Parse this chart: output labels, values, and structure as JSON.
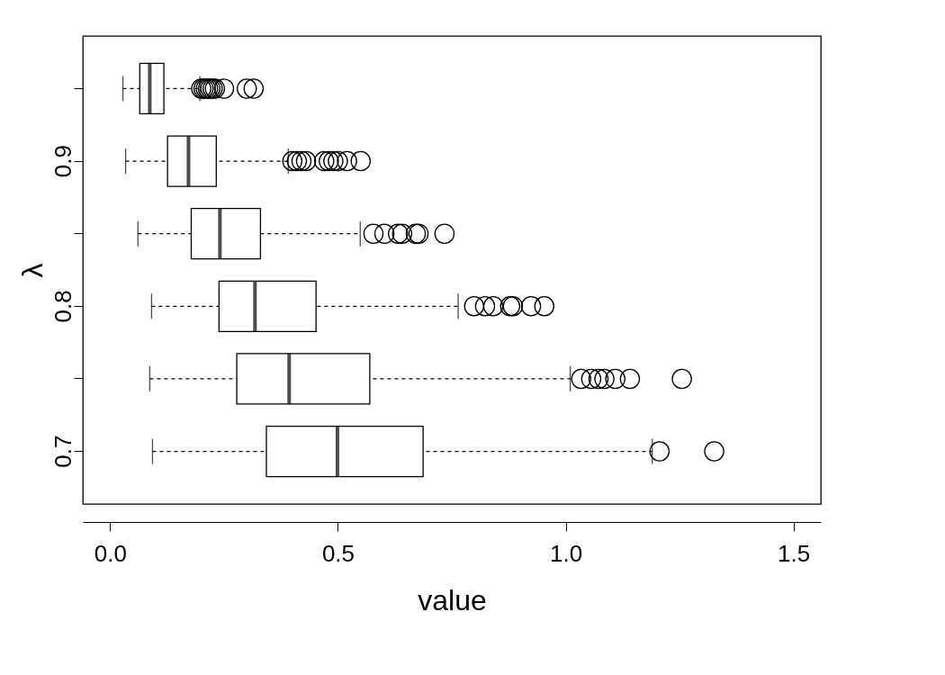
{
  "chart_data": {
    "type": "box",
    "orientation": "horizontal",
    "xlabel": "value",
    "ylabel": "λ",
    "categories": [
      null,
      "0.9",
      null,
      "0.8",
      null,
      "0.7"
    ],
    "boxes": [
      {
        "low": 0.028,
        "q1": 0.065,
        "median": 0.087,
        "q3": 0.118,
        "high": 0.197,
        "outliers": [
          0.2,
          0.205,
          0.21,
          0.215,
          0.22,
          0.225,
          0.23,
          0.25,
          0.3,
          0.315
        ]
      },
      {
        "low": 0.034,
        "q1": 0.126,
        "median": 0.172,
        "q3": 0.233,
        "high": 0.391,
        "outliers": [
          0.4,
          0.41,
          0.42,
          0.43,
          0.47,
          0.48,
          0.49,
          0.5,
          0.52,
          0.55
        ]
      },
      {
        "low": 0.061,
        "q1": 0.178,
        "median": 0.241,
        "q3": 0.33,
        "high": 0.549,
        "outliers": [
          0.578,
          0.602,
          0.632,
          0.641,
          0.671,
          0.677,
          0.734
        ]
      },
      {
        "low": 0.091,
        "q1": 0.239,
        "median": 0.318,
        "q3": 0.452,
        "high": 0.764,
        "outliers": [
          0.799,
          0.823,
          0.841,
          0.878,
          0.884,
          0.924,
          0.953
        ]
      },
      {
        "low": 0.087,
        "q1": 0.278,
        "median": 0.393,
        "q3": 0.57,
        "high": 1.01,
        "outliers": [
          1.034,
          1.056,
          1.072,
          1.085,
          1.109,
          1.141,
          1.255
        ]
      },
      {
        "low": 0.093,
        "q1": 0.343,
        "median": 0.499,
        "q3": 0.687,
        "high": 1.19,
        "outliers": [
          1.206,
          1.326
        ]
      }
    ],
    "xlim": [
      -0.06,
      1.56
    ],
    "xticks": [
      {
        "value": 0,
        "label": "0.0"
      },
      {
        "value": 0.5,
        "label": "0.5"
      },
      {
        "value": 1,
        "label": "1.0"
      },
      {
        "value": 1.5,
        "label": "1.5"
      }
    ],
    "grid": false
  }
}
